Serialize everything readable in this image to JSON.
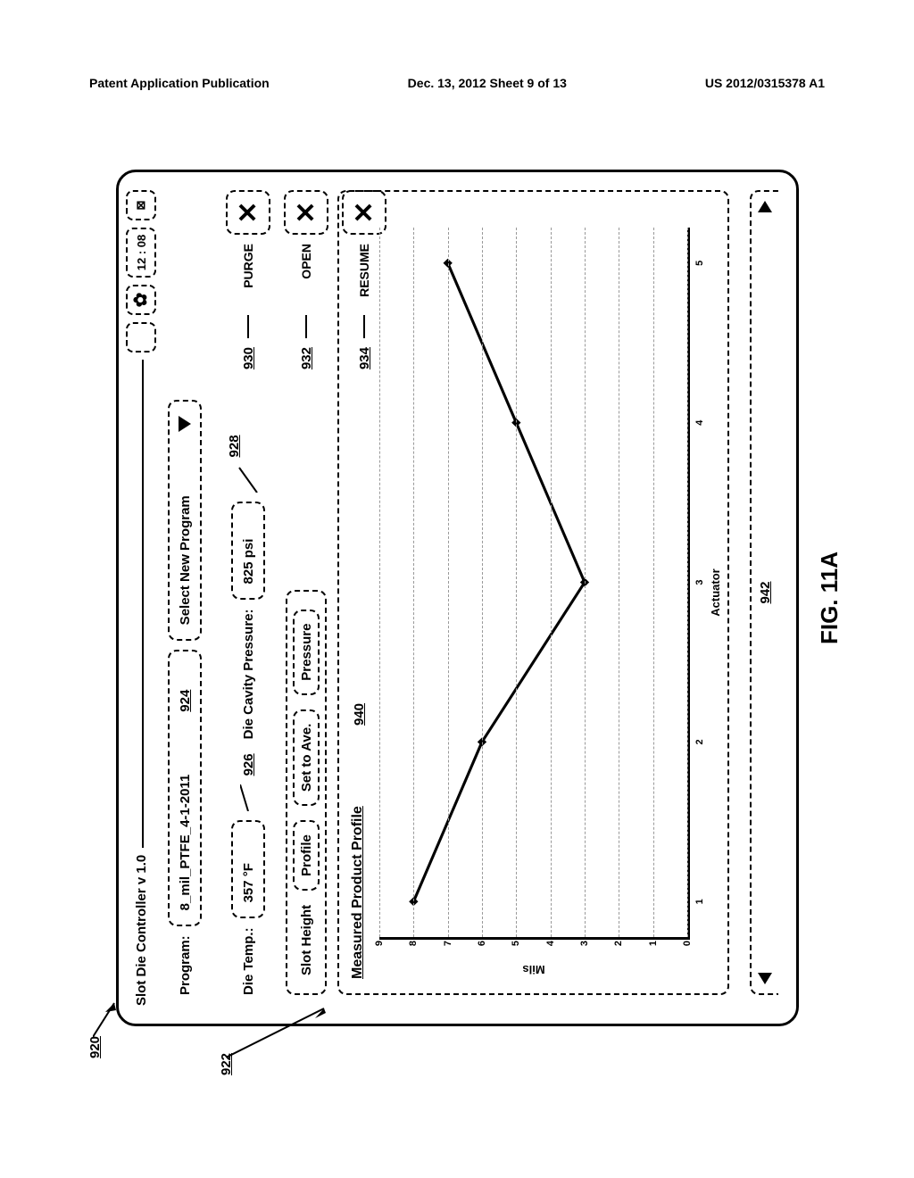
{
  "header": {
    "left": "Patent Application Publication",
    "center": "Dec. 13, 2012  Sheet 9 of 13",
    "right": "US 2012/0315378 A1"
  },
  "figure_label": "FIG. 11A",
  "window": {
    "title": "Slot Die Controller v 1.0",
    "time": "12 : 08",
    "close_symbol": "⊠"
  },
  "program": {
    "label": "Program:",
    "value": "8_mil_PTFE_4-1-2011",
    "ref": "924",
    "select_label": "Select New Program"
  },
  "die_temp": {
    "label": "Die Temp.:",
    "value": "357 °F",
    "ref": "926"
  },
  "cavity": {
    "label": "Die Cavity Pressure:",
    "value": "825 psi",
    "ref": "928"
  },
  "slot_height": {
    "label": "Slot Height",
    "b1": "Profile",
    "b2": "Set to Ave.",
    "b3": "Pressure"
  },
  "actions": {
    "purge": {
      "label": "PURGE",
      "ref": "930",
      "symbol": "✕"
    },
    "open": {
      "label": "OPEN",
      "ref": "932",
      "symbol": "✕"
    },
    "resume": {
      "label": "RESUME",
      "ref": "934",
      "symbol": "✕"
    }
  },
  "chart": {
    "title": "Measured Product Profile",
    "ref": "940",
    "y_label": "Mils",
    "x_label": "Actuator",
    "y_ticks": [
      "0",
      "1",
      "2",
      "3",
      "4",
      "5",
      "6",
      "7",
      "8",
      "9"
    ],
    "y_max": 9,
    "x_ticks": [
      "1",
      "2",
      "3",
      "4",
      "5"
    ],
    "x_min": 1,
    "x_max": 5,
    "data_points": [
      {
        "x": 1,
        "y": 8
      },
      {
        "x": 2,
        "y": 6
      },
      {
        "x": 3,
        "y": 3
      },
      {
        "x": 4,
        "y": 5
      },
      {
        "x": 5,
        "y": 7
      }
    ],
    "line_color": "#000000",
    "line_width": 3,
    "marker_size": 7
  },
  "scroll_ref": "942",
  "callouts": {
    "c920": "920",
    "c922": "922"
  }
}
